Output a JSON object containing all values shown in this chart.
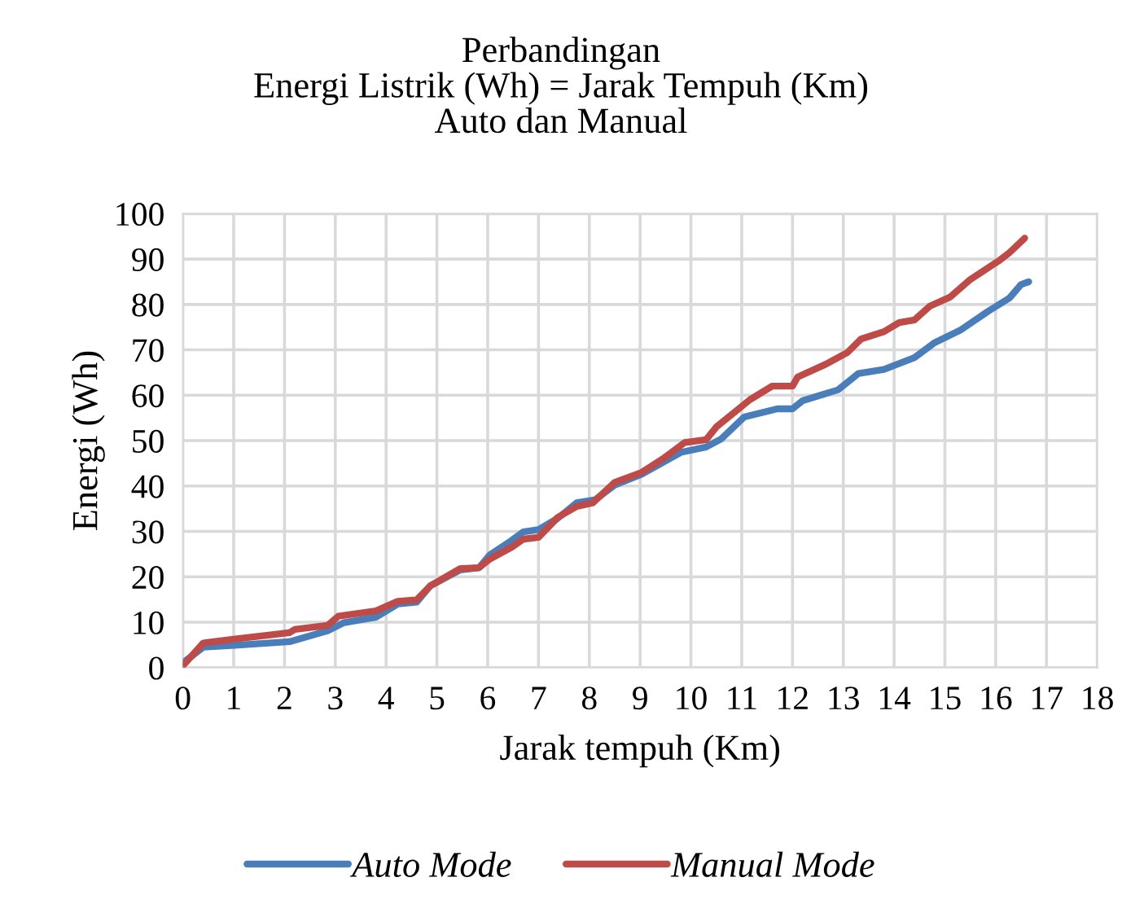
{
  "chart_data": {
    "type": "line",
    "title": "Perbandingan\nEnergi Listrik (Wh) = Jarak Tempuh (Km)\nAuto dan Manual",
    "xlabel": "Jarak tempuh (Km)",
    "ylabel": "Energi (Wh)",
    "xlim": [
      0,
      18
    ],
    "xticks": [
      0,
      1,
      2,
      3,
      4,
      5,
      6,
      7,
      8,
      9,
      10,
      11,
      12,
      13,
      14,
      15,
      16,
      17,
      18
    ],
    "ylim": [
      0,
      100
    ],
    "yticks": [
      0,
      10,
      20,
      30,
      40,
      50,
      60,
      70,
      80,
      90,
      100
    ],
    "grid": true,
    "legend": "bottom",
    "marker": "none",
    "line_style": "solid",
    "series": [
      {
        "name": "Auto Mode",
        "color": "#4a7ebb",
        "x": [
          0,
          0.4,
          1.03,
          2.1,
          2.85,
          3.17,
          3.8,
          4.23,
          4.6,
          4.87,
          5.46,
          5.83,
          6.04,
          6.47,
          6.7,
          7,
          7.38,
          7.75,
          8.12,
          8.5,
          9.03,
          9.8,
          10.3,
          10.6,
          11.05,
          11.7,
          12.0,
          12.2,
          12.9,
          13.3,
          13.8,
          14.4,
          14.8,
          15.3,
          15.85,
          16.27,
          16.5,
          16.65
        ],
        "values": [
          1,
          4.5,
          4.9,
          5.7,
          8.1,
          9.9,
          11.1,
          14,
          14.4,
          18,
          21.5,
          22,
          24.8,
          28,
          29.9,
          30.4,
          32.9,
          36.3,
          37,
          40.2,
          42.6,
          47.4,
          48.6,
          50.4,
          55.2,
          57,
          57,
          58.8,
          61.2,
          64.8,
          65.7,
          68.3,
          71.6,
          74.3,
          78.5,
          81.4,
          84.4,
          85
        ]
      },
      {
        "name": "Manual Mode",
        "color": "#be4b48",
        "x": [
          0,
          0.4,
          1.03,
          2.1,
          2.2,
          2.85,
          3.06,
          3.8,
          4.23,
          4.6,
          4.87,
          5.46,
          5.83,
          6.04,
          6.47,
          6.7,
          7,
          7.38,
          7.75,
          8.07,
          8.5,
          9.03,
          9.45,
          9.88,
          10.3,
          10.5,
          11.16,
          11.6,
          12.0,
          12.1,
          12.65,
          13.08,
          13.35,
          13.8,
          14.1,
          14.4,
          14.7,
          15.1,
          15.5,
          16.06,
          16.27,
          16.57
        ],
        "values": [
          0.4,
          5.4,
          6.3,
          7.7,
          8.4,
          9.3,
          11.3,
          12.5,
          14.6,
          14.9,
          18,
          21.8,
          22,
          23.9,
          26.5,
          28.3,
          28.7,
          33.1,
          35.5,
          36.3,
          40.8,
          43,
          46,
          49.6,
          50.2,
          53,
          59,
          62,
          62,
          64,
          66.8,
          69.4,
          72.4,
          74,
          76,
          76.6,
          79.6,
          81.6,
          85.5,
          89.6,
          91.4,
          94.6
        ]
      }
    ]
  }
}
